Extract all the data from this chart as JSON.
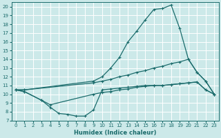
{
  "xlabel": "Humidex (Indice chaleur)",
  "bg_color": "#cce9e9",
  "grid_color": "#ffffff",
  "line_color": "#1a6b6b",
  "xlim": [
    -0.5,
    23.5
  ],
  "ylim": [
    7,
    20.5
  ],
  "yticks": [
    7,
    8,
    9,
    10,
    11,
    12,
    13,
    14,
    15,
    16,
    17,
    18,
    19,
    20
  ],
  "xticks": [
    0,
    1,
    2,
    3,
    4,
    5,
    6,
    7,
    8,
    9,
    10,
    11,
    12,
    13,
    14,
    15,
    16,
    17,
    18,
    19,
    20,
    21,
    22,
    23
  ],
  "curve_upper_x": [
    0,
    1,
    9,
    10,
    11,
    12,
    13,
    14,
    15,
    16,
    17,
    18,
    19,
    20,
    21,
    22,
    23
  ],
  "curve_upper_y": [
    10.5,
    10.5,
    11.5,
    12.0,
    13.0,
    14.2,
    16.0,
    17.2,
    18.5,
    19.7,
    19.8,
    20.2,
    17.5,
    14.0,
    12.5,
    11.5,
    10.0
  ],
  "curve_dip_x": [
    0,
    1,
    3,
    4,
    5,
    6,
    7,
    8,
    9,
    10,
    11,
    12,
    13,
    14,
    15,
    16,
    17,
    18,
    19,
    20,
    21,
    22,
    23
  ],
  "curve_dip_y": [
    10.5,
    10.3,
    9.3,
    8.5,
    7.8,
    7.7,
    7.5,
    7.5,
    8.2,
    10.5,
    10.6,
    10.7,
    10.8,
    10.9,
    11.0,
    11.0,
    11.0,
    11.1,
    11.2,
    11.3,
    11.4,
    10.5,
    10.0
  ],
  "line_upper_x": [
    0,
    1,
    9,
    10,
    11,
    12,
    13,
    14,
    15,
    16,
    17,
    18,
    19,
    20,
    21,
    22,
    23
  ],
  "line_upper_y": [
    10.5,
    10.5,
    11.3,
    11.5,
    11.7,
    12.0,
    12.2,
    12.5,
    12.7,
    13.0,
    13.2,
    13.5,
    13.7,
    14.0,
    12.5,
    11.5,
    10.0
  ],
  "line_lower_x": [
    0,
    1,
    3,
    4,
    9,
    10,
    11,
    12,
    13,
    14,
    15,
    16,
    17,
    18,
    19,
    20,
    21,
    22,
    23
  ],
  "line_lower_y": [
    10.5,
    10.3,
    9.3,
    8.8,
    10.0,
    10.2,
    10.3,
    10.5,
    10.6,
    10.8,
    10.9,
    11.0,
    11.0,
    11.1,
    11.2,
    11.3,
    11.4,
    10.5,
    10.0
  ]
}
